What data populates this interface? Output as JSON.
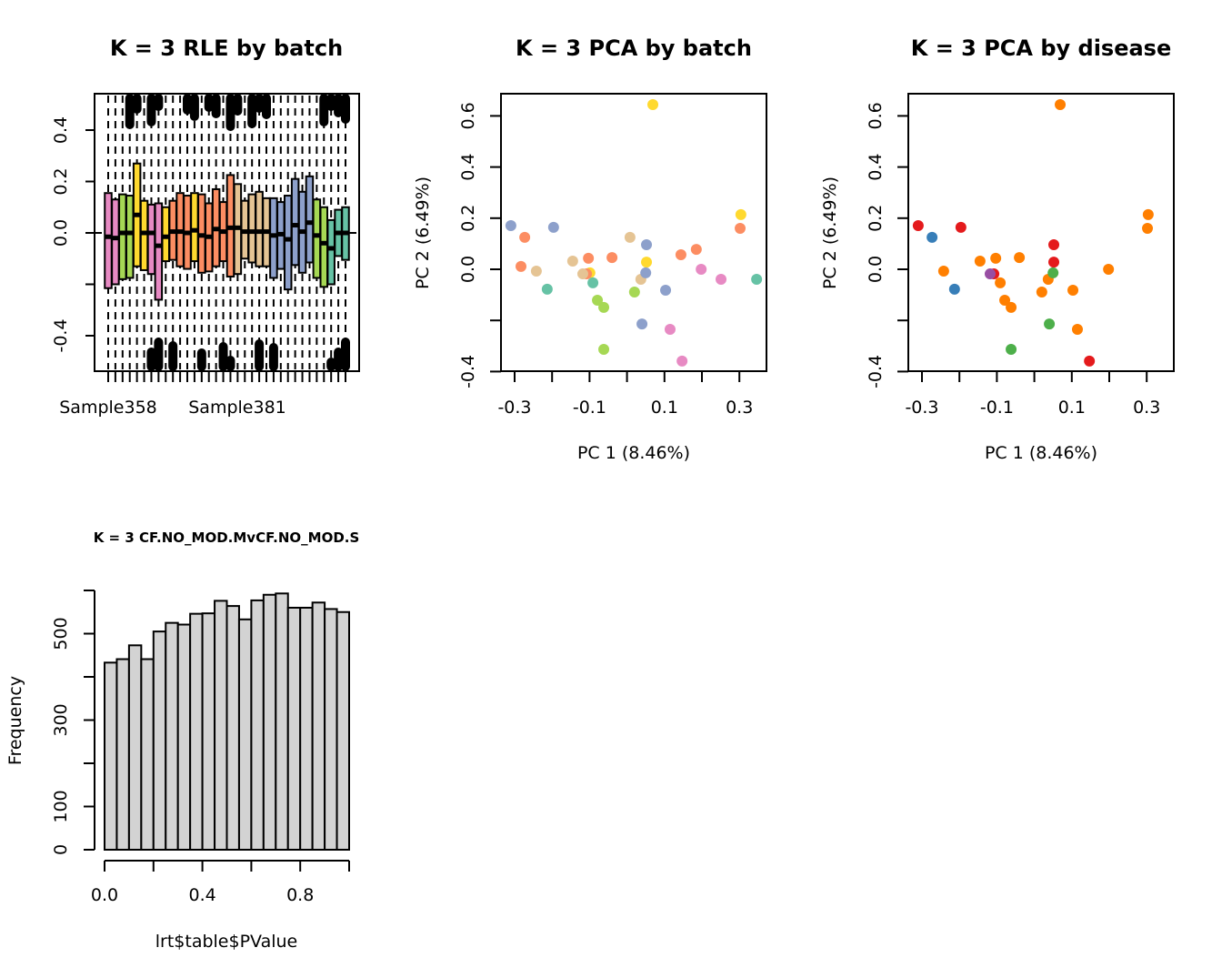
{
  "chart_data": [
    {
      "type": "boxplot",
      "title": "K = 3 RLE by batch",
      "xlabel": "",
      "ylabel": "",
      "ylim": [
        -0.54,
        0.54
      ],
      "yticks": [
        -0.4,
        -0.2,
        0.0,
        0.2,
        0.4
      ],
      "ytick_labels": [
        "-0.4",
        "",
        "0.0",
        "0.2",
        "0.4"
      ],
      "xtick_labels": [
        "Sample358",
        "Sample381"
      ],
      "reference_line": 0.0,
      "boxes": [
        {
          "color": "#E78AC3",
          "q1": -0.215,
          "median": -0.015,
          "q3": 0.155
        },
        {
          "color": "#E78AC3",
          "q1": -0.2,
          "median": -0.02,
          "q3": 0.13
        },
        {
          "color": "#A6D854",
          "q1": -0.18,
          "median": 0.0,
          "q3": 0.15
        },
        {
          "color": "#A6D854",
          "q1": -0.175,
          "median": 0.0,
          "q3": 0.145
        },
        {
          "color": "#FFD92F",
          "q1": -0.13,
          "median": 0.07,
          "q3": 0.27
        },
        {
          "color": "#FFD92F",
          "q1": -0.145,
          "median": 0.0,
          "q3": 0.125
        },
        {
          "color": "#E78AC3",
          "q1": -0.16,
          "median": 0.0,
          "q3": 0.11
        },
        {
          "color": "#E78AC3",
          "q1": -0.26,
          "median": -0.05,
          "q3": 0.115
        },
        {
          "color": "#FFD92F",
          "q1": -0.11,
          "median": -0.015,
          "q3": 0.1
        },
        {
          "color": "#FC8D62",
          "q1": -0.105,
          "median": 0.005,
          "q3": 0.125
        },
        {
          "color": "#FC8D62",
          "q1": -0.13,
          "median": 0.005,
          "q3": 0.155
        },
        {
          "color": "#FC8D62",
          "q1": -0.14,
          "median": 0.0,
          "q3": 0.145
        },
        {
          "color": "#FFD92F",
          "q1": -0.11,
          "median": 0.01,
          "q3": 0.155
        },
        {
          "color": "#FC8D62",
          "q1": -0.155,
          "median": -0.01,
          "q3": 0.15
        },
        {
          "color": "#FC8D62",
          "q1": -0.15,
          "median": -0.015,
          "q3": 0.115
        },
        {
          "color": "#FC8D62",
          "q1": -0.13,
          "median": 0.015,
          "q3": 0.17
        },
        {
          "color": "#FC8D62",
          "q1": -0.11,
          "median": 0.005,
          "q3": 0.12
        },
        {
          "color": "#FC8D62",
          "q1": -0.17,
          "median": 0.02,
          "q3": 0.225
        },
        {
          "color": "#E5C494",
          "q1": -0.16,
          "median": 0.02,
          "q3": 0.19
        },
        {
          "color": "#E5C494",
          "q1": -0.1,
          "median": 0.005,
          "q3": 0.125
        },
        {
          "color": "#E5C494",
          "q1": -0.115,
          "median": 0.005,
          "q3": 0.15
        },
        {
          "color": "#E5C494",
          "q1": -0.13,
          "median": 0.005,
          "q3": 0.16
        },
        {
          "color": "#E5C494",
          "q1": -0.13,
          "median": 0.005,
          "q3": 0.135
        },
        {
          "color": "#8DA0CB",
          "q1": -0.175,
          "median": -0.01,
          "q3": 0.135
        },
        {
          "color": "#8DA0CB",
          "q1": -0.14,
          "median": -0.005,
          "q3": 0.12
        },
        {
          "color": "#8DA0CB",
          "q1": -0.22,
          "median": -0.025,
          "q3": 0.145
        },
        {
          "color": "#8DA0CB",
          "q1": -0.125,
          "median": 0.03,
          "q3": 0.21
        },
        {
          "color": "#8DA0CB",
          "q1": -0.155,
          "median": 0.005,
          "q3": 0.16
        },
        {
          "color": "#8DA0CB",
          "q1": -0.115,
          "median": 0.04,
          "q3": 0.22
        },
        {
          "color": "#A6D854",
          "q1": -0.175,
          "median": -0.01,
          "q3": 0.13
        },
        {
          "color": "#A6D854",
          "q1": -0.21,
          "median": -0.04,
          "q3": 0.1
        },
        {
          "color": "#66C2A5",
          "q1": -0.2,
          "median": -0.06,
          "q3": 0.05
        },
        {
          "color": "#66C2A5",
          "q1": -0.09,
          "median": 0.0,
          "q3": 0.09
        },
        {
          "color": "#66C2A5",
          "q1": -0.105,
          "median": 0.0,
          "q3": 0.1
        }
      ],
      "outlier_clusters_top": [
        3,
        4,
        6,
        7,
        11,
        12,
        14,
        15,
        17,
        18,
        20,
        21,
        22,
        30,
        31,
        32,
        33
      ],
      "outlier_clusters_bottom": [
        6,
        7,
        9,
        13,
        16,
        17,
        21,
        23,
        31,
        32,
        33
      ]
    },
    {
      "type": "scatter",
      "title": "K = 3 PCA by batch",
      "xlabel": "PC 1 (8.46%)",
      "ylabel": "PC 2 (6.49%)",
      "xlim": [
        -0.336,
        0.373
      ],
      "ylim": [
        -0.4,
        0.67
      ],
      "xticks": [
        -0.3,
        -0.2,
        -0.1,
        0.0,
        0.1,
        0.2,
        0.3
      ],
      "xtick_labels": [
        "-0.3",
        "",
        "-0.1",
        "",
        "0.1",
        "",
        "0.3"
      ],
      "yticks": [
        -0.4,
        -0.2,
        0.0,
        0.2,
        0.4,
        0.6
      ],
      "ytick_labels": [
        "-0.4",
        "",
        "0.0",
        "0.2",
        "0.4",
        "0.6"
      ],
      "points": [
        {
          "x": -0.31,
          "y": 0.171,
          "color": "#8DA0CB"
        },
        {
          "x": -0.273,
          "y": 0.125,
          "color": "#FC8D62"
        },
        {
          "x": -0.196,
          "y": 0.164,
          "color": "#8DA0CB"
        },
        {
          "x": -0.283,
          "y": 0.011,
          "color": "#FC8D62"
        },
        {
          "x": -0.242,
          "y": -0.007,
          "color": "#E5C494"
        },
        {
          "x": -0.213,
          "y": -0.078,
          "color": "#66C2A5"
        },
        {
          "x": -0.145,
          "y": 0.032,
          "color": "#E5C494"
        },
        {
          "x": -0.103,
          "y": 0.043,
          "color": "#FC8D62"
        },
        {
          "x": -0.04,
          "y": 0.046,
          "color": "#FC8D62"
        },
        {
          "x": -0.099,
          "y": -0.014,
          "color": "#FFD92F"
        },
        {
          "x": -0.108,
          "y": -0.018,
          "color": "#FC8D62"
        },
        {
          "x": -0.118,
          "y": -0.018,
          "color": "#E5C494"
        },
        {
          "x": -0.091,
          "y": -0.053,
          "color": "#66C2A5"
        },
        {
          "x": -0.079,
          "y": -0.121,
          "color": "#A6D854"
        },
        {
          "x": -0.062,
          "y": -0.149,
          "color": "#A6D854"
        },
        {
          "x": -0.062,
          "y": -0.313,
          "color": "#A6D854"
        },
        {
          "x": 0.008,
          "y": 0.125,
          "color": "#E5C494"
        },
        {
          "x": 0.052,
          "y": 0.096,
          "color": "#8DA0CB"
        },
        {
          "x": 0.052,
          "y": 0.028,
          "color": "#FFD92F"
        },
        {
          "x": 0.037,
          "y": -0.039,
          "color": "#E5C494"
        },
        {
          "x": 0.05,
          "y": -0.014,
          "color": "#8DA0CB"
        },
        {
          "x": 0.02,
          "y": -0.089,
          "color": "#A6D854"
        },
        {
          "x": 0.103,
          "y": -0.082,
          "color": "#8DA0CB"
        },
        {
          "x": 0.04,
          "y": -0.214,
          "color": "#8DA0CB"
        },
        {
          "x": 0.115,
          "y": -0.235,
          "color": "#E78AC3"
        },
        {
          "x": 0.144,
          "y": 0.057,
          "color": "#FC8D62"
        },
        {
          "x": 0.185,
          "y": 0.078,
          "color": "#FC8D62"
        },
        {
          "x": 0.198,
          "y": 0.0,
          "color": "#E78AC3"
        },
        {
          "x": 0.251,
          "y": -0.039,
          "color": "#E78AC3"
        },
        {
          "x": 0.147,
          "y": -0.359,
          "color": "#E78AC3"
        },
        {
          "x": 0.304,
          "y": 0.214,
          "color": "#FFD92F"
        },
        {
          "x": 0.302,
          "y": 0.16,
          "color": "#FC8D62"
        },
        {
          "x": 0.346,
          "y": -0.039,
          "color": "#66C2A5"
        },
        {
          "x": 0.069,
          "y": 0.644,
          "color": "#FFD92F"
        }
      ]
    },
    {
      "type": "scatter",
      "title": "K = 3 PCA by disease",
      "xlabel": "PC 1 (8.46%)",
      "ylabel": "PC 2 (6.49%)",
      "xlim": [
        -0.336,
        0.373
      ],
      "ylim": [
        -0.4,
        0.67
      ],
      "xticks": [
        -0.3,
        -0.2,
        -0.1,
        0.0,
        0.1,
        0.2,
        0.3
      ],
      "xtick_labels": [
        "-0.3",
        "",
        "-0.1",
        "",
        "0.1",
        "",
        "0.3"
      ],
      "yticks": [
        -0.4,
        -0.2,
        0.0,
        0.2,
        0.4,
        0.6
      ],
      "ytick_labels": [
        "-0.4",
        "",
        "0.0",
        "0.2",
        "0.4",
        "0.6"
      ],
      "points": [
        {
          "x": -0.31,
          "y": 0.171,
          "color": "#E41A1C"
        },
        {
          "x": -0.273,
          "y": 0.125,
          "color": "#377EB8"
        },
        {
          "x": -0.196,
          "y": 0.164,
          "color": "#E41A1C"
        },
        {
          "x": -0.242,
          "y": -0.007,
          "color": "#FF7F00"
        },
        {
          "x": -0.213,
          "y": -0.078,
          "color": "#377EB8"
        },
        {
          "x": -0.145,
          "y": 0.032,
          "color": "#FF7F00"
        },
        {
          "x": -0.103,
          "y": 0.043,
          "color": "#FF7F00"
        },
        {
          "x": -0.04,
          "y": 0.046,
          "color": "#FF7F00"
        },
        {
          "x": -0.108,
          "y": -0.018,
          "color": "#E41A1C"
        },
        {
          "x": -0.118,
          "y": -0.018,
          "color": "#984EA3"
        },
        {
          "x": -0.091,
          "y": -0.053,
          "color": "#FF7F00"
        },
        {
          "x": -0.079,
          "y": -0.121,
          "color": "#FF7F00"
        },
        {
          "x": -0.062,
          "y": -0.149,
          "color": "#FF7F00"
        },
        {
          "x": -0.062,
          "y": -0.313,
          "color": "#4DAF4A"
        },
        {
          "x": 0.052,
          "y": 0.096,
          "color": "#E41A1C"
        },
        {
          "x": 0.052,
          "y": 0.028,
          "color": "#E41A1C"
        },
        {
          "x": 0.037,
          "y": -0.039,
          "color": "#FF7F00"
        },
        {
          "x": 0.05,
          "y": -0.014,
          "color": "#4DAF4A"
        },
        {
          "x": 0.02,
          "y": -0.089,
          "color": "#FF7F00"
        },
        {
          "x": 0.103,
          "y": -0.082,
          "color": "#FF7F00"
        },
        {
          "x": 0.04,
          "y": -0.214,
          "color": "#4DAF4A"
        },
        {
          "x": 0.115,
          "y": -0.235,
          "color": "#FF7F00"
        },
        {
          "x": 0.198,
          "y": 0.0,
          "color": "#FF7F00"
        },
        {
          "x": 0.147,
          "y": -0.359,
          "color": "#E41A1C"
        },
        {
          "x": 0.304,
          "y": 0.214,
          "color": "#FF7F00"
        },
        {
          "x": 0.302,
          "y": 0.16,
          "color": "#FF7F00"
        },
        {
          "x": 0.069,
          "y": 0.644,
          "color": "#FF7F00"
        }
      ]
    },
    {
      "type": "bar",
      "subtype": "histogram",
      "title": "K = 3 CF.NO_MOD.MvCF.NO_MOD.S",
      "xlabel": "lrt$table$PValue",
      "ylabel": "Frequency",
      "xlim": [
        0,
        1
      ],
      "ylim": [
        0,
        600
      ],
      "xticks": [
        0.0,
        0.2,
        0.4,
        0.6,
        0.8,
        1.0
      ],
      "xtick_labels": [
        "0.0",
        "",
        "0.4",
        "",
        "0.8",
        ""
      ],
      "yticks": [
        0,
        100,
        200,
        300,
        400,
        500,
        600
      ],
      "ytick_labels": [
        "0",
        "100",
        "",
        "300",
        "",
        "500",
        ""
      ],
      "bin_width": 0.05,
      "bar_color": "#D3D3D3",
      "values": [
        433,
        441,
        473,
        441,
        505,
        525,
        521,
        546,
        547,
        576,
        564,
        533,
        577,
        590,
        593,
        560,
        560,
        572,
        557,
        550
      ]
    }
  ]
}
